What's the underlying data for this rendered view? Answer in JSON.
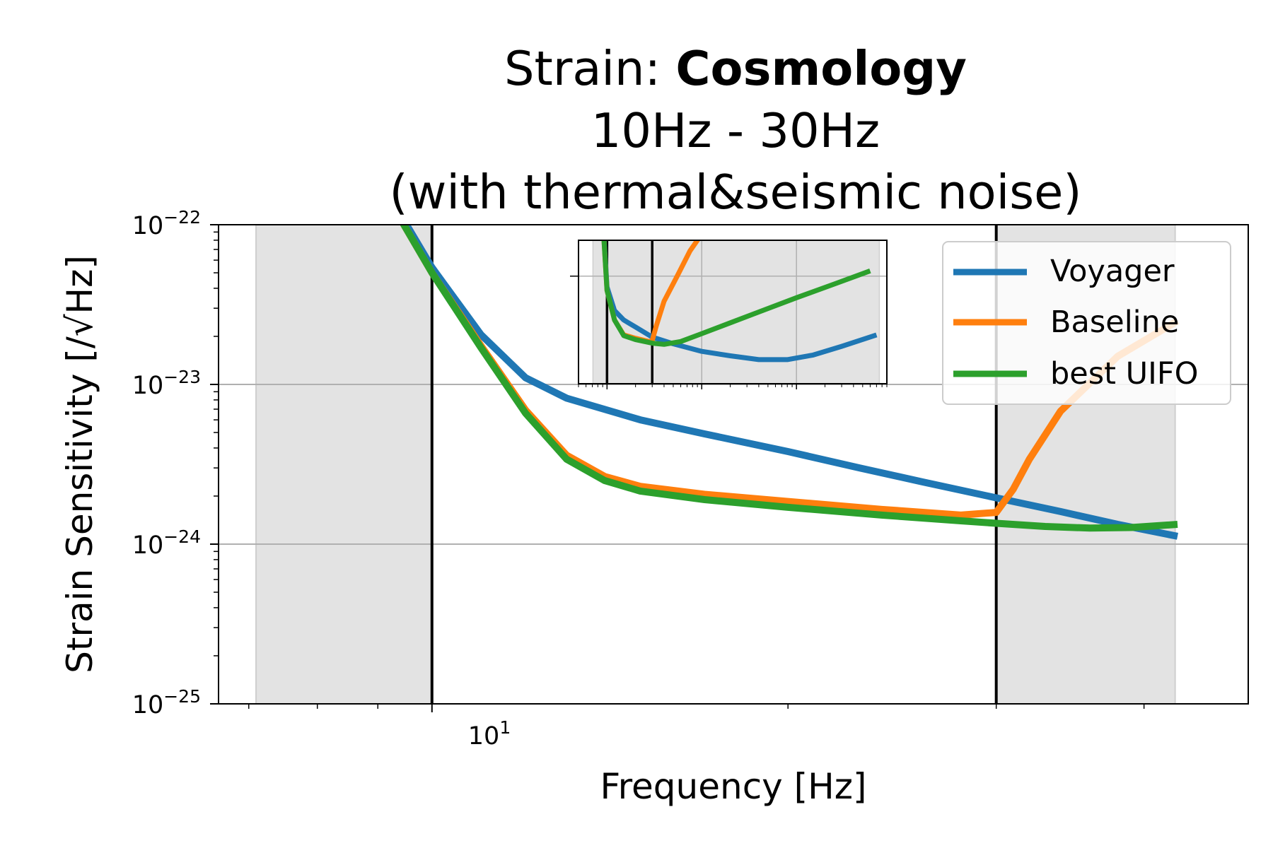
{
  "chart_data": {
    "type": "line",
    "title": {
      "line1_prefix": "Strain: ",
      "line1_bold": "Cosmology",
      "line2": "10Hz - 30Hz",
      "line3": "(with thermal&seismic noise)"
    },
    "xlabel": "Frequency [Hz]",
    "ylabel": "Strain Sensitivity [/√Hz]",
    "x_scale": "log",
    "y_scale": "log",
    "xlim": [
      6.6,
      49
    ],
    "ylim": [
      1e-25,
      1e-22
    ],
    "grid": true,
    "x_tick_labels": [
      {
        "x": 10,
        "base": "10",
        "exp": "1"
      }
    ],
    "y_tick_labels": [
      {
        "y": 1e-22,
        "base": "10",
        "exp": "−22"
      },
      {
        "y": 1e-23,
        "base": "10",
        "exp": "−23"
      },
      {
        "y": 1e-24,
        "base": "10",
        "exp": "−24"
      },
      {
        "y": 1e-25,
        "base": "10",
        "exp": "−25"
      }
    ],
    "shaded_ranges": [
      [
        7.1,
        10
      ],
      [
        30,
        42.5
      ]
    ],
    "vertical_lines": [
      10,
      30
    ],
    "legend_position": "top-right",
    "series": [
      {
        "name": "Voyager",
        "color": "#1f77b4",
        "x": [
          9.0,
          10,
          11,
          12,
          13,
          15,
          17,
          20,
          23,
          26,
          30,
          34,
          38,
          42.7
        ],
        "y": [
          2e-22,
          5.4e-23,
          2.05e-23,
          1.1e-23,
          8.2e-24,
          6e-24,
          4.9e-24,
          3.8e-24,
          3e-24,
          2.45e-24,
          1.95e-24,
          1.6e-24,
          1.33e-24,
          1.12e-24
        ]
      },
      {
        "name": "Baseline",
        "color": "#ff7f0e",
        "x": [
          9.0,
          10,
          11,
          12,
          13,
          14,
          15,
          17,
          20,
          24,
          28,
          30,
          31,
          32,
          34,
          38,
          42.7
        ],
        "y": [
          1.9e-22,
          5e-23,
          1.75e-23,
          6.9e-24,
          3.6e-24,
          2.65e-24,
          2.3e-24,
          2.05e-24,
          1.85e-24,
          1.65e-24,
          1.52e-24,
          1.58e-24,
          2.2e-24,
          3.4e-24,
          6.8e-24,
          1.5e-23,
          2.5e-23
        ]
      },
      {
        "name": "best UIFO",
        "color": "#2ca02c",
        "x": [
          9.0,
          10,
          11,
          12,
          13,
          14,
          15,
          17,
          20,
          24,
          28,
          30,
          33,
          36,
          39,
          42.7
        ],
        "y": [
          1.9e-22,
          5e-23,
          1.7e-23,
          6.6e-24,
          3.4e-24,
          2.5e-24,
          2.15e-24,
          1.9e-24,
          1.7e-24,
          1.52e-24,
          1.4e-24,
          1.35e-24,
          1.29e-24,
          1.26e-24,
          1.27e-24,
          1.33e-24
        ]
      }
    ],
    "inset": {
      "x_scale": "log",
      "y_scale": "log",
      "grid": true,
      "vertical_lines": [
        10,
        30
      ],
      "shaded_ranges": [
        [
          7.1,
          7500
        ]
      ],
      "xlim": [
        5,
        9000
      ],
      "ylim": [
        1e-25,
        1e-21
      ],
      "series": [
        {
          "name": "Voyager",
          "color": "#1f77b4",
          "x": [
            9,
            10,
            12,
            15,
            20,
            30,
            50,
            100,
            200,
            400,
            800,
            1500,
            3000,
            7000
          ],
          "y": [
            5e-21,
            5e-23,
            1.1e-23,
            6e-24,
            3.8e-24,
            2e-24,
            1.3e-24,
            8e-25,
            6e-25,
            4.7e-25,
            4.7e-25,
            6.3e-25,
            1.1e-24,
            2.3e-24
          ]
        },
        {
          "name": "Baseline",
          "color": "#ff7f0e",
          "x": [
            9,
            10,
            12,
            15,
            20,
            28,
            30,
            33,
            40,
            55,
            75,
            100
          ],
          "y": [
            4e-21,
            4e-23,
            6e-24,
            2.3e-24,
            1.85e-24,
            1.5e-24,
            1.6e-24,
            4e-24,
            2e-23,
            1e-22,
            5e-22,
            1.5e-21
          ]
        },
        {
          "name": "best UIFO",
          "color": "#2ca02c",
          "x": [
            9,
            10,
            12,
            15,
            20,
            30,
            40,
            60,
            100,
            200,
            400,
            1000,
            2500,
            6000
          ],
          "y": [
            4e-21,
            4e-23,
            6e-24,
            2.2e-24,
            1.7e-24,
            1.35e-24,
            1.25e-24,
            1.5e-24,
            2.5e-24,
            5e-24,
            1e-23,
            2.5e-23,
            6e-23,
            1.4e-22
          ]
        }
      ]
    }
  }
}
